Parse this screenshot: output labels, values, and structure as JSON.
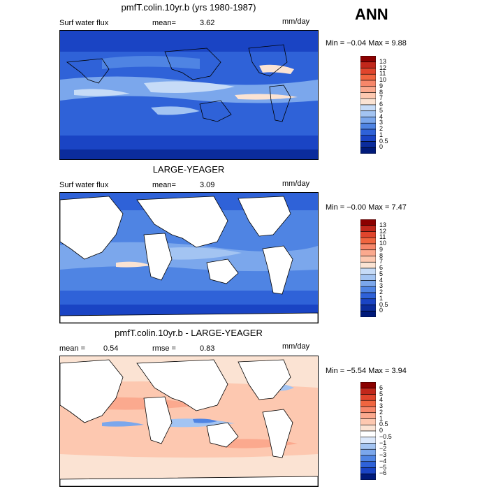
{
  "season": "ANN",
  "panels": [
    {
      "title": "pmfT.colin.10yr.b (yrs 1980-1987)",
      "left_label": "Surf water flux",
      "mean_label": "mean=",
      "mean_value": "3.62",
      "units": "mm/day",
      "minmax": "Min =   −0.04  Max =     9.88",
      "ticks": [
        "13",
        "12",
        "11",
        "10",
        "9",
        "8",
        "7",
        "6",
        "5",
        "4",
        "3",
        "2",
        "1",
        "0.5",
        "0"
      ],
      "land_masked": false
    },
    {
      "title": "LARGE-YEAGER",
      "left_label": "Surf water flux",
      "mean_label": "mean=",
      "mean_value": "3.09",
      "units": "mm/day",
      "minmax": "Min =   −0.00  Max =     7.47",
      "ticks": [
        "13",
        "12",
        "11",
        "10",
        "9",
        "8",
        "7",
        "6",
        "5",
        "4",
        "3",
        "2",
        "1",
        "0.5",
        "0"
      ],
      "land_masked": true
    },
    {
      "title": "pmfT.colin.10yr.b - LARGE-YEAGER",
      "left_label": "mean =",
      "mean_label": "",
      "mean_value": "0.54",
      "rmse_label": "rmse =",
      "rmse_value": "0.83",
      "units": "mm/day",
      "minmax": "Min =  −5.54  Max =     3.94",
      "ticks": [
        "6",
        "5",
        "4",
        "3",
        "2",
        "1",
        "0.5",
        "0",
        "−0.5",
        "−1",
        "−2",
        "−3",
        "−4",
        "−5",
        "−6"
      ],
      "land_masked": true
    }
  ],
  "colors": {
    "abs_scale": [
      "#8b0000",
      "#c1271b",
      "#e0452c",
      "#f0653f",
      "#f7876a",
      "#fba98e",
      "#fdc8b0",
      "#fbe3d3",
      "#c6dbf7",
      "#a3c4f2",
      "#7ba7ec",
      "#4f84e3",
      "#2f62d8",
      "#1a44c4",
      "#0b2c9c",
      "#001a7a"
    ],
    "diff_scale": [
      "#8b0000",
      "#c1271b",
      "#e0452c",
      "#f0653f",
      "#f7876a",
      "#fba98e",
      "#fdc8b0",
      "#fbe3d3",
      "#ffffff",
      "#dbe8fb",
      "#a3c4f2",
      "#7ba7ec",
      "#4f84e3",
      "#2f62d8",
      "#1a44c4",
      "#001a7a"
    ]
  }
}
